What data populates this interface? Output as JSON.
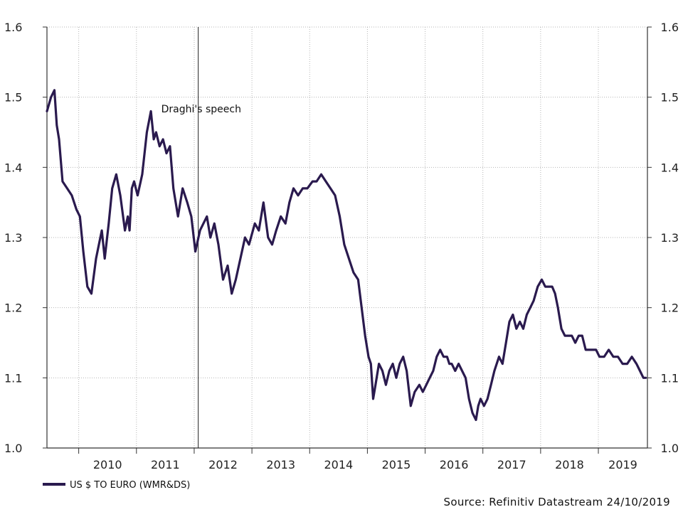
{
  "chart_data": {
    "type": "line",
    "title": "",
    "xlabel": "",
    "ylabel": "",
    "ylim": [
      1.0,
      1.6
    ],
    "xlim": [
      2009.45,
      2019.85
    ],
    "y_ticks": [
      "1.0",
      "1.1",
      "1.2",
      "1.3",
      "1.4",
      "1.5",
      "1.6"
    ],
    "y_ticks_right": [
      "1.0",
      "1.1",
      "1.2",
      "1.3",
      "1.4",
      "1.5",
      "1.6"
    ],
    "x_tick_labels": [
      "2010",
      "2011",
      "2012",
      "2013",
      "2014",
      "2015",
      "2016",
      "2017",
      "2018",
      "2019"
    ],
    "grid": true,
    "series": [
      {
        "name": "US $ TO EURO (WMR&DS)",
        "color": "#2a1a4e",
        "x": [
          2009.45,
          2009.52,
          2009.58,
          2009.62,
          2009.66,
          2009.72,
          2009.8,
          2009.88,
          2009.96,
          2010.02,
          2010.08,
          2010.15,
          2010.22,
          2010.3,
          2010.35,
          2010.4,
          2010.45,
          2010.52,
          2010.58,
          2010.65,
          2010.72,
          2010.8,
          2010.85,
          2010.88,
          2010.92,
          2010.96,
          2011.02,
          2011.1,
          2011.18,
          2011.25,
          2011.3,
          2011.34,
          2011.4,
          2011.46,
          2011.52,
          2011.58,
          2011.64,
          2011.72,
          2011.8,
          2011.88,
          2011.95,
          2012.02,
          2012.1,
          2012.16,
          2012.22,
          2012.28,
          2012.35,
          2012.42,
          2012.5,
          2012.58,
          2012.65,
          2012.72,
          2012.8,
          2012.88,
          2012.95,
          2013.05,
          2013.12,
          2013.2,
          2013.28,
          2013.35,
          2013.42,
          2013.5,
          2013.58,
          2013.65,
          2013.72,
          2013.8,
          2013.88,
          2013.96,
          2014.05,
          2014.12,
          2014.2,
          2014.28,
          2014.36,
          2014.44,
          2014.52,
          2014.6,
          2014.68,
          2014.76,
          2014.84,
          2014.9,
          2014.96,
          2015.02,
          2015.06,
          2015.1,
          2015.14,
          2015.2,
          2015.26,
          2015.32,
          2015.38,
          2015.44,
          2015.5,
          2015.56,
          2015.62,
          2015.68,
          2015.75,
          2015.82,
          2015.9,
          2015.96,
          2016.02,
          2016.08,
          2016.14,
          2016.2,
          2016.26,
          2016.32,
          2016.38,
          2016.42,
          2016.46,
          2016.52,
          2016.58,
          2016.64,
          2016.7,
          2016.76,
          2016.82,
          2016.88,
          2016.92,
          2016.96,
          2017.02,
          2017.08,
          2017.14,
          2017.2,
          2017.28,
          2017.34,
          2017.4,
          2017.46,
          2017.52,
          2017.58,
          2017.64,
          2017.7,
          2017.76,
          2017.82,
          2017.88,
          2017.95,
          2018.02,
          2018.08,
          2018.14,
          2018.2,
          2018.25,
          2018.3,
          2018.36,
          2018.42,
          2018.48,
          2018.54,
          2018.6,
          2018.66,
          2018.72,
          2018.78,
          2018.84,
          2018.9,
          2018.96,
          2019.02,
          2019.1,
          2019.18,
          2019.26,
          2019.34,
          2019.42,
          2019.5,
          2019.58,
          2019.66,
          2019.72,
          2019.78,
          2019.82
        ],
        "values": [
          1.48,
          1.5,
          1.51,
          1.46,
          1.44,
          1.38,
          1.37,
          1.36,
          1.34,
          1.33,
          1.28,
          1.23,
          1.22,
          1.27,
          1.29,
          1.31,
          1.27,
          1.32,
          1.37,
          1.39,
          1.36,
          1.31,
          1.33,
          1.31,
          1.37,
          1.38,
          1.36,
          1.39,
          1.45,
          1.48,
          1.44,
          1.45,
          1.43,
          1.44,
          1.42,
          1.43,
          1.37,
          1.33,
          1.37,
          1.35,
          1.33,
          1.28,
          1.31,
          1.32,
          1.33,
          1.3,
          1.32,
          1.29,
          1.24,
          1.26,
          1.22,
          1.24,
          1.27,
          1.3,
          1.29,
          1.32,
          1.31,
          1.35,
          1.3,
          1.29,
          1.31,
          1.33,
          1.32,
          1.35,
          1.37,
          1.36,
          1.37,
          1.37,
          1.38,
          1.38,
          1.39,
          1.38,
          1.37,
          1.36,
          1.33,
          1.29,
          1.27,
          1.25,
          1.24,
          1.2,
          1.16,
          1.13,
          1.12,
          1.07,
          1.09,
          1.12,
          1.11,
          1.09,
          1.11,
          1.12,
          1.1,
          1.12,
          1.13,
          1.11,
          1.06,
          1.08,
          1.09,
          1.08,
          1.09,
          1.1,
          1.11,
          1.13,
          1.14,
          1.13,
          1.13,
          1.12,
          1.12,
          1.11,
          1.12,
          1.11,
          1.1,
          1.07,
          1.05,
          1.04,
          1.06,
          1.07,
          1.06,
          1.07,
          1.09,
          1.11,
          1.13,
          1.12,
          1.15,
          1.18,
          1.19,
          1.17,
          1.18,
          1.17,
          1.19,
          1.2,
          1.21,
          1.23,
          1.24,
          1.23,
          1.23,
          1.23,
          1.22,
          1.2,
          1.17,
          1.16,
          1.16,
          1.16,
          1.15,
          1.16,
          1.16,
          1.14,
          1.14,
          1.14,
          1.14,
          1.13,
          1.13,
          1.14,
          1.13,
          1.13,
          1.12,
          1.12,
          1.13,
          1.12,
          1.11,
          1.1,
          1.1
        ]
      }
    ],
    "legend_position": "bottom-left",
    "annotations": [
      {
        "text": "Draghi's speech",
        "x": 2012.07
      }
    ]
  },
  "source": "Source: Refinitiv Datastream 24/10/2019"
}
